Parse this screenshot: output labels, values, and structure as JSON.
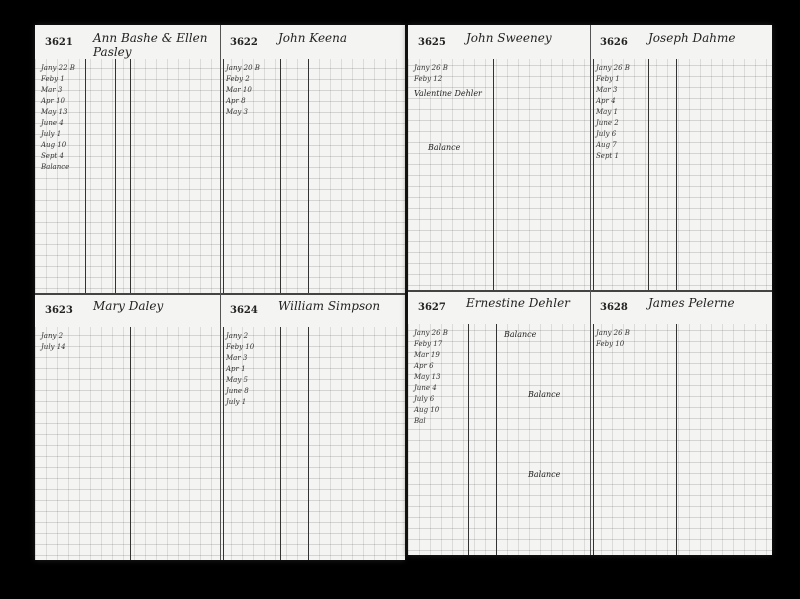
{
  "left_page": {
    "accounts": [
      {
        "number": "3621",
        "name": "Ann Bashe & Ellen Pasley",
        "entries": [
          "Jany 22 B",
          "Feby 1",
          "Mar 3",
          "Apr 10",
          "May 13",
          "June 4",
          "July 1",
          "Aug 10",
          "Sept 4",
          "Balance"
        ]
      },
      {
        "number": "3622",
        "name": "John Keena",
        "entries": [
          "Jany 20 B",
          "Feby 2",
          "Mar 10",
          "Apr 8",
          "May 3"
        ]
      },
      {
        "number": "3623",
        "name": "Mary Daley",
        "entries": [
          "Jany 2",
          "July 14"
        ]
      },
      {
        "number": "3624",
        "name": "William Simpson",
        "entries": [
          "Jany 2",
          "Feby 10",
          "Mar 3",
          "Apr 1",
          "May 5",
          "June 8",
          "July 1"
        ]
      }
    ]
  },
  "right_page": {
    "accounts": [
      {
        "number": "3625",
        "name": "John Sweeney",
        "entries": [
          "Jany 26 B",
          "Feby 12"
        ],
        "notes": [
          "Valentine Dehler",
          "Balance"
        ]
      },
      {
        "number": "3626",
        "name": "Joseph Dahme",
        "entries": [
          "Jany 26 B",
          "Feby 1",
          "Mar 3",
          "Apr 4",
          "May 1",
          "June 2",
          "July 6",
          "Aug 7",
          "Sept 1"
        ]
      },
      {
        "number": "3627",
        "name": "Ernestine Dehler",
        "entries": [
          "Jany 26 B",
          "Feby 17",
          "Mar 19",
          "Apr 6",
          "May 13",
          "June 4",
          "July 6",
          "Aug 10",
          "Bal"
        ],
        "notes": [
          "Balance",
          "Balance",
          "Balance"
        ]
      },
      {
        "number": "3628",
        "name": "James Pelerne",
        "entries": [
          "Jany 26 B",
          "Feby 10"
        ]
      }
    ]
  }
}
